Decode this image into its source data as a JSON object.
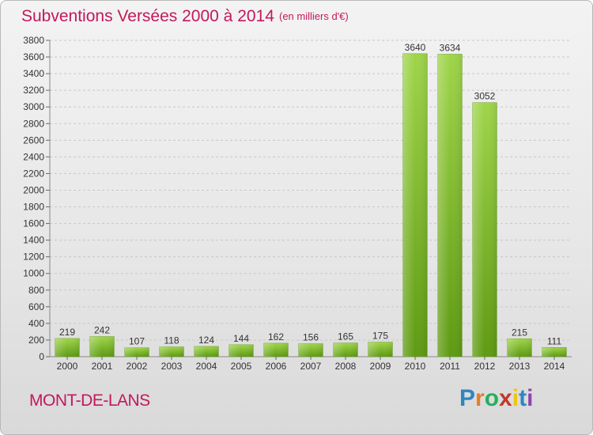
{
  "header": {
    "title": "Subventions Versées 2000 à 2014",
    "subtitle": "(en milliers d'€)"
  },
  "footer": {
    "commune": "MONT-DE-LANS",
    "logo": {
      "text": "Proxiti",
      "letters": [
        {
          "char": "P",
          "color": "#2e86c1"
        },
        {
          "char": "r",
          "color": "#e67e22"
        },
        {
          "char": "o",
          "color": "#27ae60"
        },
        {
          "char": "x",
          "color": "#c0392b"
        },
        {
          "char": "i",
          "color": "#f1c40f"
        },
        {
          "char": "t",
          "color": "#2e86c1"
        },
        {
          "char": "i",
          "color": "#8e44ad"
        }
      ]
    }
  },
  "chart_data": {
    "type": "bar",
    "title": "Subventions Versées 2000 à 2014",
    "subtitle": "(en milliers d'€)",
    "categories": [
      "2000",
      "2001",
      "2002",
      "2003",
      "2004",
      "2005",
      "2006",
      "2007",
      "2008",
      "2009",
      "2010",
      "2011",
      "2012",
      "2013",
      "2014"
    ],
    "values": [
      219,
      242,
      107,
      118,
      124,
      144,
      162,
      156,
      165,
      175,
      3640,
      3634,
      3052,
      215,
      111
    ],
    "ylim": [
      0,
      3800
    ],
    "yticks": [
      0,
      200,
      400,
      600,
      800,
      1000,
      1200,
      1400,
      1600,
      1800,
      2000,
      2200,
      2400,
      2600,
      2800,
      3000,
      3200,
      3400,
      3600,
      3800
    ],
    "grid": true,
    "bar_color": "#7cb82f",
    "data_labels": true
  }
}
